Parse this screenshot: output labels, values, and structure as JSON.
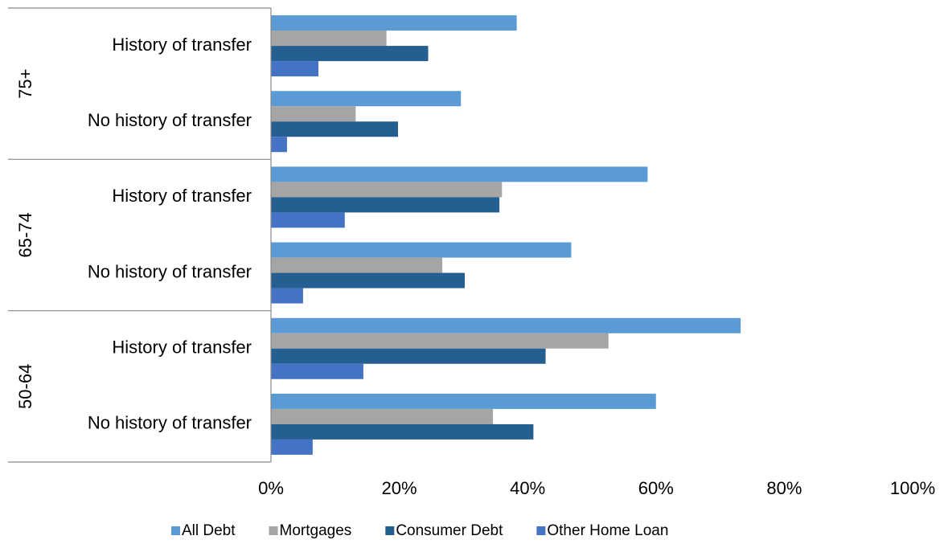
{
  "chart_data": {
    "type": "hbar",
    "groups": [
      {
        "name": "75+",
        "categories": [
          "History of transfer",
          "No history of transfer"
        ]
      },
      {
        "name": "65-74",
        "categories": [
          "History of transfer",
          "No history of transfer"
        ]
      },
      {
        "name": "50-64",
        "categories": [
          "History of transfer",
          "No history of transfer"
        ]
      }
    ],
    "series": [
      {
        "name": "All Debt",
        "color": "#5b9bd5",
        "values": [
          38.3,
          29.6,
          58.7,
          46.8,
          73.2,
          60.0
        ]
      },
      {
        "name": "Mortgages",
        "color": "#a5a5a5",
        "values": [
          18.0,
          13.2,
          36.0,
          26.7,
          52.6,
          34.6
        ]
      },
      {
        "name": "Consumer Debt",
        "color": "#255e91",
        "values": [
          24.5,
          19.8,
          35.6,
          30.2,
          42.8,
          40.9
        ]
      },
      {
        "name": "Other Home Loan",
        "color": "#4472c4",
        "values": [
          7.4,
          2.5,
          11.5,
          5.0,
          14.4,
          6.5
        ]
      }
    ],
    "xlim": [
      0,
      100
    ],
    "xticks": [
      {
        "value": 0,
        "label": "0%"
      },
      {
        "value": 20,
        "label": "20%"
      },
      {
        "value": 40,
        "label": "40%"
      },
      {
        "value": 60,
        "label": "60%"
      },
      {
        "value": 80,
        "label": "80%"
      },
      {
        "value": 100,
        "label": "100%"
      }
    ],
    "legend": "bottom"
  }
}
